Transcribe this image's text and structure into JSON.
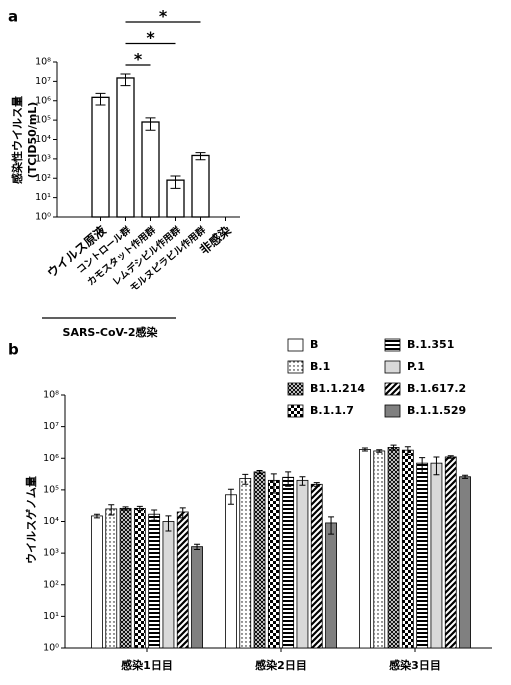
{
  "chart_data": [
    {
      "type": "bar",
      "panel_label": "a",
      "y_label": [
        "感染性ウイルス量",
        "(TCID50/mL)"
      ],
      "categories": [
        "ウイルス原液",
        "コントロール群",
        "カモスタット作用群",
        "レムデシビル作用群",
        "モルヌピラビル作用群",
        "非感染"
      ],
      "values": [
        1500000,
        15000000,
        80000,
        80,
        1500,
        1
      ],
      "errors": [
        900000,
        9000000,
        50000,
        50,
        600,
        0
      ],
      "color": "#ffffff",
      "log_scale": true,
      "ylim": [
        1,
        100000000
      ],
      "yticks": [
        {
          "value": 1,
          "label": "10⁰"
        },
        {
          "value": 10,
          "label": "10¹"
        },
        {
          "value": 100,
          "label": "10²"
        },
        {
          "value": 1000,
          "label": "10³"
        },
        {
          "value": 10000,
          "label": "10⁴"
        },
        {
          "value": 100000,
          "label": "10⁵"
        },
        {
          "value": 1000000,
          "label": "10⁶"
        },
        {
          "value": 10000000,
          "label": "10⁷"
        },
        {
          "value": 100000000,
          "label": "10⁸"
        }
      ],
      "annotations": [
        {
          "text": "*",
          "from": "コントロール群",
          "to": "モルヌピラビル作用群"
        },
        {
          "text": "*",
          "from": "コントロール群",
          "to": "レムデシビル作用群"
        },
        {
          "text": "*",
          "from": "コントロール群",
          "to": "カモスタット作用群"
        }
      ],
      "group_label": "SARS-CoV-2感染"
    },
    {
      "type": "grouped_bar",
      "panel_label": "b",
      "y_label": [
        "ウイルスゲノム量"
      ],
      "categories": [
        "感染1日目",
        "感染2日目",
        "感染3日目"
      ],
      "series": [
        {
          "name": "B",
          "color": "#ffffff",
          "pattern": "none",
          "values": [
            15000,
            70000,
            1900000
          ],
          "errors": [
            2000,
            35000,
            200000
          ]
        },
        {
          "name": "B.1",
          "color": "#000000",
          "pattern": "dots",
          "values": [
            25000,
            230000,
            1700000
          ],
          "errors": [
            9000,
            80000,
            150000
          ]
        },
        {
          "name": "B1.1.214",
          "color": "#000000",
          "pattern": "crosshatch",
          "values": [
            26000,
            370000,
            2200000
          ],
          "errors": [
            3000,
            40000,
            400000
          ]
        },
        {
          "name": "B.1.1.7",
          "color": "#000000",
          "pattern": "checker",
          "values": [
            26000,
            200000,
            1800000
          ],
          "errors": [
            4000,
            120000,
            500000
          ]
        },
        {
          "name": "B.1.351",
          "color": "#000000",
          "pattern": "hstripes",
          "values": [
            17000,
            250000,
            700000
          ],
          "errors": [
            6000,
            120000,
            350000
          ]
        },
        {
          "name": "P.1",
          "color": "#d9d9d9",
          "pattern": "none",
          "values": [
            10000,
            200000,
            700000
          ],
          "errors": [
            5000,
            60000,
            400000
          ]
        },
        {
          "name": "B.1.617.2",
          "color": "#000000",
          "pattern": "diagonal",
          "values": [
            20000,
            150000,
            1100000
          ],
          "errors": [
            7000,
            20000,
            100000
          ]
        },
        {
          "name": "B.1.1.529",
          "color": "#808080",
          "pattern": "none",
          "values": [
            1600,
            9000,
            260000
          ],
          "errors": [
            300,
            5000,
            30000
          ]
        }
      ],
      "log_scale": true,
      "ylim": [
        1,
        100000000
      ],
      "yticks": [
        {
          "value": 1,
          "label": "10⁰"
        },
        {
          "value": 10,
          "label": "10¹"
        },
        {
          "value": 100,
          "label": "10²"
        },
        {
          "value": 1000,
          "label": "10³"
        },
        {
          "value": 10000,
          "label": "10⁴"
        },
        {
          "value": 100000,
          "label": "10⁵"
        },
        {
          "value": 1000000,
          "label": "10⁶"
        },
        {
          "value": 10000000,
          "label": "10⁷"
        },
        {
          "value": 100000000,
          "label": "10⁸"
        }
      ],
      "legend": "top-right"
    }
  ]
}
